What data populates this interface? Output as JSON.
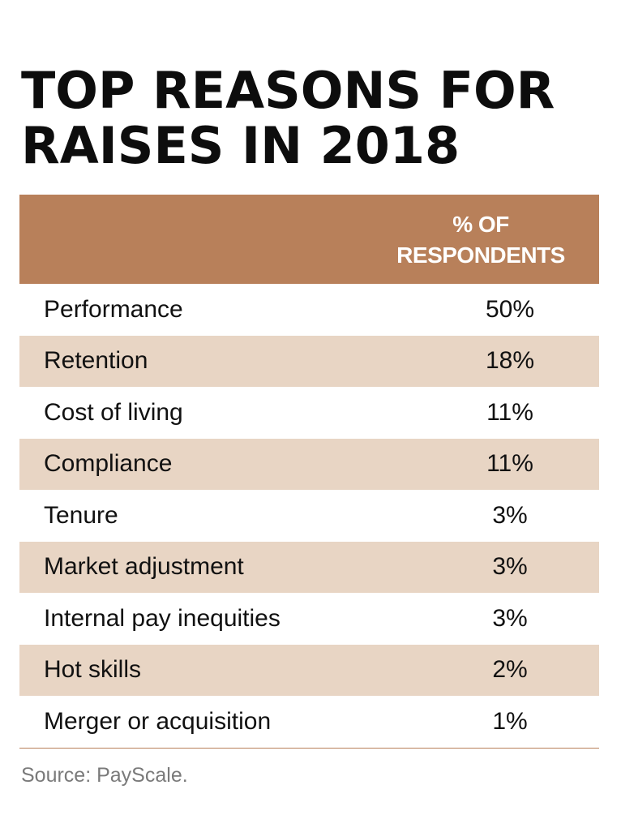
{
  "chart_data": {
    "type": "table",
    "title_lines": [
      "TOP REASONS FOR",
      "RAISES IN 2018"
    ],
    "column_header_lines": [
      "% OF",
      "RESPONDENTS"
    ],
    "rows": [
      {
        "label": "Performance",
        "value": "50%"
      },
      {
        "label": "Retention",
        "value": "18%"
      },
      {
        "label": "Cost of living",
        "value": "11%"
      },
      {
        "label": "Compliance",
        "value": "11%"
      },
      {
        "label": "Tenure",
        "value": "3%"
      },
      {
        "label": "Market adjustment",
        "value": "3%"
      },
      {
        "label": "Internal pay inequities",
        "value": "3%"
      },
      {
        "label": "Hot skills",
        "value": "2%"
      },
      {
        "label": "Merger or acquisition",
        "value": "1%"
      }
    ],
    "source": "Source: PayScale.",
    "colors": {
      "header_bg": "#b8805a",
      "header_text": "#ffffff",
      "shaded_row": "#e8d5c4",
      "rule": "#b8805a",
      "source_text": "#7a7a7a"
    }
  }
}
